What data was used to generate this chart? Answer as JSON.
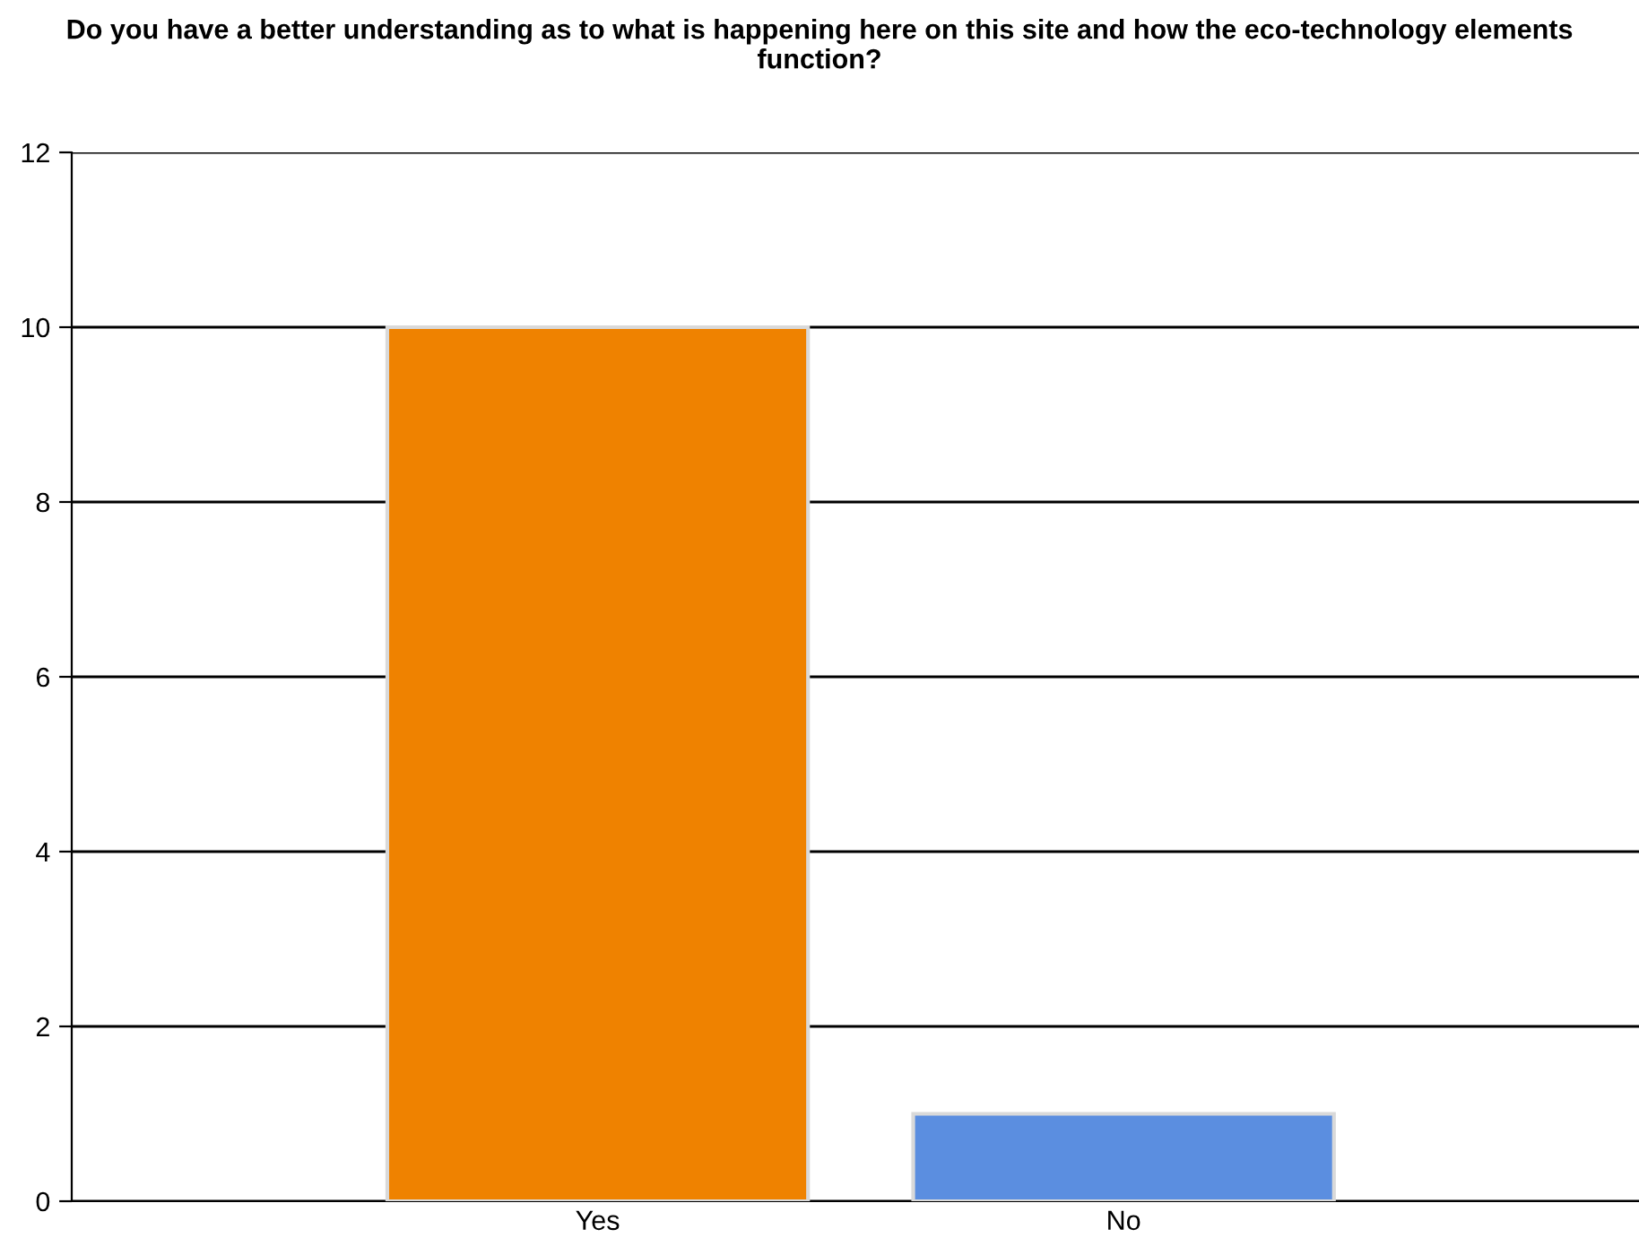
{
  "chart_data": {
    "type": "bar",
    "title": "Do you have a better understanding as to what is happening here on this site and how the eco-technology elements function?",
    "categories": [
      "Yes",
      "No"
    ],
    "values": [
      10,
      1
    ],
    "colors": [
      "#ef8200",
      "#5b8ee0"
    ],
    "ylim": [
      0,
      12
    ],
    "yticks": [
      0,
      2,
      4,
      6,
      8,
      10,
      12
    ],
    "grid": "y",
    "legend": false
  }
}
